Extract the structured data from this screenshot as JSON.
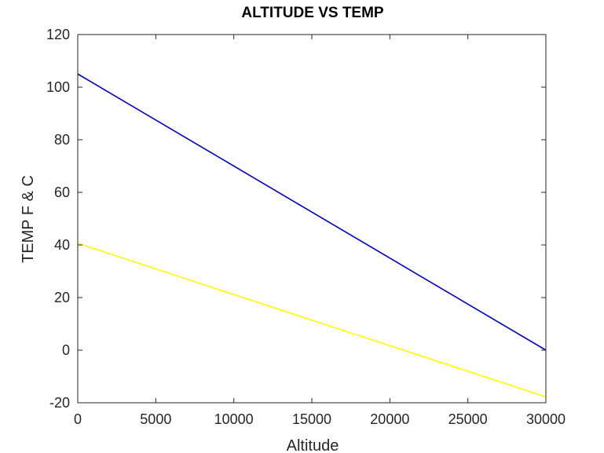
{
  "chart_data": {
    "type": "line",
    "title": "ALTITUDE VS TEMP",
    "xlabel": "Altitude",
    "ylabel": "TEMP F & C",
    "xlim": [
      0,
      30000
    ],
    "ylim": [
      -20,
      120
    ],
    "xticks": [
      0,
      5000,
      10000,
      15000,
      20000,
      25000,
      30000
    ],
    "yticks": [
      -20,
      0,
      20,
      40,
      60,
      80,
      100,
      120
    ],
    "grid": false,
    "legend": "none",
    "series": [
      {
        "color": "#0000cc",
        "x": [
          0,
          30000
        ],
        "y": [
          105,
          0
        ]
      },
      {
        "color": "#ffff00",
        "x": [
          0,
          30000
        ],
        "y": [
          40.6,
          -17.8
        ]
      }
    ]
  }
}
